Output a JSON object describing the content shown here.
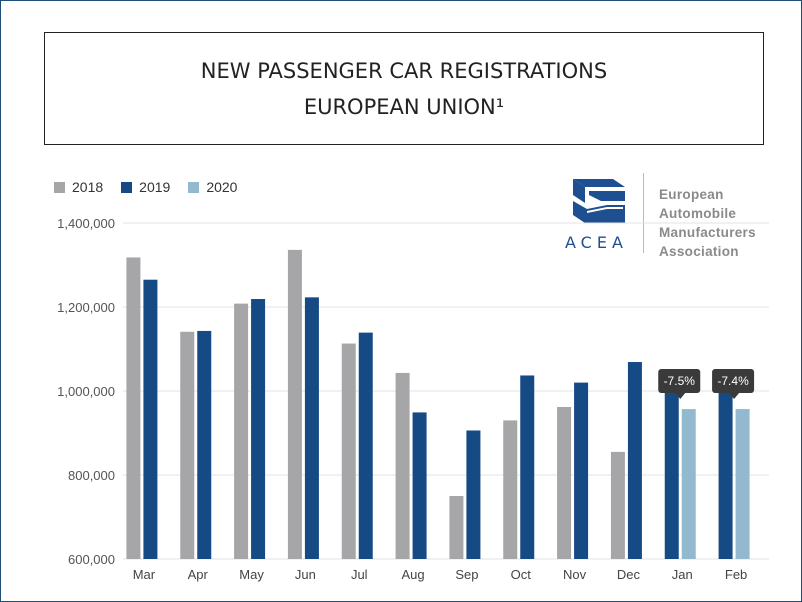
{
  "chart_data": {
    "type": "bar",
    "title_line1": "NEW PASSENGER CAR REGISTRATIONS",
    "title_line2": "EUROPEAN UNION¹",
    "categories": [
      "Mar",
      "Apr",
      "May",
      "Jun",
      "Jul",
      "Aug",
      "Sep",
      "Oct",
      "Nov",
      "Dec",
      "Jan",
      "Feb"
    ],
    "series": [
      {
        "name": "2018",
        "color": "#a6a6a8",
        "values": [
          1318000,
          1141000,
          1208000,
          1336000,
          1113000,
          1043000,
          750000,
          930000,
          962000,
          855000,
          null,
          null
        ]
      },
      {
        "name": "2019",
        "color": "#154a85",
        "values": [
          1265000,
          1143000,
          1219000,
          1223000,
          1139000,
          949000,
          906000,
          1037000,
          1020000,
          1069000,
          1035000,
          1033000
        ]
      },
      {
        "name": "2020",
        "color": "#93b9cf",
        "values": [
          null,
          null,
          null,
          null,
          null,
          null,
          null,
          null,
          null,
          null,
          957000,
          957000
        ]
      }
    ],
    "yticks": [
      {
        "value": 1400000,
        "label": "1,400,000"
      },
      {
        "value": 1200000,
        "label": "1,200,000"
      },
      {
        "value": 1000000,
        "label": "1,000,000"
      },
      {
        "value": 800000,
        "label": "800,000"
      },
      {
        "value": 600000,
        "label": "600,000"
      }
    ],
    "ylim": [
      600000,
      1400000
    ],
    "annotations": [
      {
        "category": "Jan",
        "text": "-7.5%"
      },
      {
        "category": "Feb",
        "text": "-7.4%"
      }
    ],
    "grid": true,
    "legend_position": "top-left"
  },
  "logo": {
    "acronym": "ACEA",
    "line1": "European",
    "line2": "Automobile",
    "line3": "Manufacturers",
    "line4": "Association"
  }
}
